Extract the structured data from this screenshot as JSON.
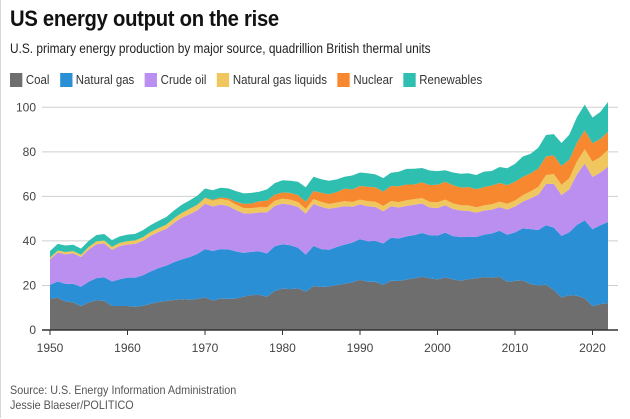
{
  "header": {
    "title": "US energy output on the rise",
    "subtitle": "U.S. primary energy production by major source, quadrillion British thermal units"
  },
  "footer": {
    "source": "Source: U.S. Energy Information Administration",
    "credit": "Jessie Blaeser/POLITICO"
  },
  "chart_data": {
    "type": "area",
    "stacked": true,
    "title": "US energy output on the rise",
    "subtitle": "U.S. primary energy production by major source, quadrillion British thermal units",
    "xlabel": "",
    "ylabel": "",
    "xlim": [
      1950,
      2022
    ],
    "ylim": [
      0,
      100
    ],
    "grid": true,
    "legend_position": "top-left",
    "x_ticks": [
      1950,
      1960,
      1970,
      1980,
      1990,
      2000,
      2010,
      2020
    ],
    "y_ticks": [
      0,
      20,
      40,
      60,
      80,
      100
    ],
    "x": [
      1950,
      1951,
      1952,
      1953,
      1954,
      1955,
      1956,
      1957,
      1958,
      1959,
      1960,
      1961,
      1962,
      1963,
      1964,
      1965,
      1966,
      1967,
      1968,
      1969,
      1970,
      1971,
      1972,
      1973,
      1974,
      1975,
      1976,
      1977,
      1978,
      1979,
      1980,
      1981,
      1982,
      1983,
      1984,
      1985,
      1986,
      1987,
      1988,
      1989,
      1990,
      1991,
      1992,
      1993,
      1994,
      1995,
      1996,
      1997,
      1998,
      1999,
      2000,
      2001,
      2002,
      2003,
      2004,
      2005,
      2006,
      2007,
      2008,
      2009,
      2010,
      2011,
      2012,
      2013,
      2014,
      2015,
      2016,
      2017,
      2018,
      2019,
      2020,
      2021,
      2022
    ],
    "series": [
      {
        "name": "Coal",
        "color": "#6e6e6e",
        "values": [
          14.1,
          14.4,
          12.8,
          12.4,
          10.7,
          12.4,
          13.3,
          13.1,
          10.8,
          10.8,
          10.8,
          10.4,
          10.9,
          11.8,
          12.5,
          13.1,
          13.5,
          13.8,
          13.6,
          13.9,
          14.6,
          13.2,
          14.1,
          13.99,
          14.07,
          14.99,
          15.65,
          15.76,
          14.91,
          17.54,
          18.6,
          18.38,
          18.64,
          17.25,
          19.72,
          19.33,
          19.51,
          20.14,
          20.74,
          21.36,
          22.49,
          21.64,
          21.63,
          20.25,
          22.11,
          22.03,
          22.68,
          23.21,
          23.94,
          23.19,
          22.74,
          23.55,
          22.73,
          22.09,
          22.85,
          23.19,
          23.79,
          23.49,
          23.85,
          21.62,
          22.04,
          22.22,
          20.68,
          19.99,
          20.29,
          17.95,
          14.67,
          15.63,
          15.36,
          14.26,
          10.7,
          11.6,
          12.0
        ]
      },
      {
        "name": "Natural gas",
        "color": "#2b8fd6",
        "values": [
          6.2,
          7.4,
          7.9,
          8.3,
          8.7,
          9.3,
          10.0,
          10.6,
          11.0,
          12.0,
          12.7,
          13.1,
          13.7,
          14.5,
          15.3,
          15.8,
          17.0,
          17.9,
          19.1,
          20.2,
          21.7,
          22.3,
          22.2,
          22.19,
          21.21,
          19.64,
          19.48,
          19.57,
          19.49,
          20.08,
          19.91,
          19.7,
          18.32,
          16.59,
          18.01,
          16.98,
          16.54,
          17.14,
          17.6,
          17.85,
          18.33,
          18.23,
          18.38,
          18.58,
          19.35,
          19.08,
          19.34,
          19.39,
          19.61,
          19.34,
          19.66,
          20.17,
          19.44,
          19.63,
          19.07,
          18.56,
          19.02,
          19.83,
          20.7,
          21.14,
          21.81,
          23.41,
          24.61,
          24.89,
          26.72,
          28.07,
          27.58,
          28.29,
          31.88,
          34.94,
          34.52,
          35.43,
          36.5
        ]
      },
      {
        "name": "Crude oil",
        "color": "#bb8ff0",
        "values": [
          11.4,
          13.0,
          13.3,
          13.7,
          13.4,
          14.4,
          15.2,
          15.2,
          14.2,
          14.9,
          14.9,
          15.2,
          15.5,
          16.0,
          16.2,
          16.5,
          17.6,
          18.7,
          19.3,
          19.6,
          20.4,
          20.0,
          20.0,
          19.49,
          18.57,
          17.73,
          17.26,
          17.45,
          18.43,
          18.1,
          18.25,
          18.15,
          18.31,
          18.39,
          18.85,
          18.99,
          18.38,
          17.67,
          17.28,
          16.12,
          15.57,
          15.7,
          15.22,
          14.49,
          14.1,
          13.89,
          13.72,
          13.66,
          13.24,
          12.45,
          12.36,
          12.28,
          12.16,
          11.96,
          11.55,
          10.97,
          10.8,
          10.72,
          10.61,
          11.35,
          11.59,
          11.99,
          13.84,
          15.86,
          18.56,
          19.57,
          18.36,
          19.21,
          22.78,
          25.53,
          23.55,
          23.65,
          24.8
        ]
      },
      {
        "name": "Natural gas liquids",
        "color": "#f0c75e",
        "values": [
          0.8,
          0.9,
          1.0,
          1.0,
          1.0,
          1.2,
          1.3,
          1.3,
          1.3,
          1.4,
          1.5,
          1.5,
          1.6,
          1.7,
          1.7,
          1.9,
          2.0,
          2.1,
          2.3,
          2.4,
          2.5,
          2.6,
          2.6,
          2.57,
          2.47,
          2.37,
          2.33,
          2.33,
          2.25,
          2.29,
          2.25,
          2.31,
          2.19,
          2.18,
          2.27,
          2.24,
          2.15,
          2.22,
          2.26,
          2.16,
          2.17,
          2.31,
          2.36,
          2.41,
          2.39,
          2.44,
          2.53,
          2.5,
          2.42,
          2.53,
          2.61,
          2.55,
          2.55,
          2.35,
          2.47,
          2.33,
          2.36,
          2.41,
          2.42,
          2.57,
          2.69,
          2.89,
          3.13,
          3.49,
          3.98,
          4.47,
          4.59,
          4.93,
          5.72,
          6.51,
          6.82,
          6.96,
          7.6
        ]
      },
      {
        "name": "Nuclear",
        "color": "#f7882f",
        "values": [
          0,
          0,
          0,
          0,
          0,
          0,
          0,
          0,
          0,
          0,
          0.01,
          0.02,
          0.03,
          0.04,
          0.04,
          0.04,
          0.06,
          0.09,
          0.14,
          0.15,
          0.24,
          0.41,
          0.58,
          0.91,
          1.27,
          1.9,
          2.11,
          2.7,
          3.02,
          2.78,
          2.74,
          3.01,
          3.13,
          3.2,
          3.55,
          4.08,
          4.38,
          4.75,
          5.59,
          5.6,
          6.1,
          6.42,
          6.48,
          6.41,
          6.69,
          7.08,
          7.09,
          6.6,
          7.07,
          7.61,
          7.86,
          8.03,
          8.14,
          7.96,
          8.22,
          8.16,
          8.21,
          8.46,
          8.43,
          8.36,
          8.43,
          8.27,
          8.06,
          8.24,
          8.34,
          8.34,
          8.43,
          8.42,
          8.44,
          8.46,
          8.25,
          8.13,
          8.06
        ]
      },
      {
        "name": "Renewables",
        "color": "#2fbfb0",
        "values": [
          2.98,
          2.96,
          2.94,
          2.86,
          2.73,
          2.78,
          2.85,
          2.9,
          3.04,
          2.93,
          2.93,
          2.97,
          3.13,
          3.08,
          3.28,
          3.4,
          3.48,
          3.66,
          3.71,
          4.02,
          4.08,
          4.27,
          4.39,
          4.43,
          4.77,
          4.72,
          4.77,
          4.25,
          5.04,
          5.17,
          5.49,
          5.47,
          5.99,
          6.5,
          6.44,
          6.08,
          6.08,
          5.71,
          5.36,
          6.3,
          6.04,
          6.07,
          5.82,
          6.08,
          5.99,
          6.56,
          7.01,
          7.02,
          6.49,
          6.52,
          6.1,
          5.16,
          5.73,
          6.15,
          6.25,
          6.41,
          6.92,
          6.5,
          7.19,
          7.6,
          8.06,
          9.12,
          8.79,
          9.35,
          9.66,
          9.56,
          10.35,
          11.17,
          11.45,
          11.51,
          11.6,
          12.1,
          13.4
        ]
      }
    ]
  }
}
